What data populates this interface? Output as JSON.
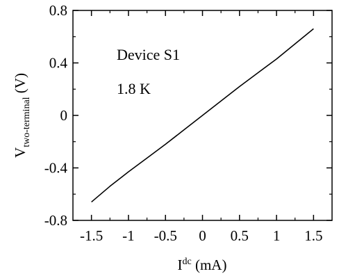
{
  "chart_data": {
    "type": "line",
    "x": [
      -1.5,
      -1.25,
      -1.0,
      -0.75,
      -0.5,
      -0.25,
      0.0,
      0.25,
      0.5,
      0.75,
      1.0,
      1.25,
      1.5
    ],
    "series": [
      {
        "values": [
          -0.66,
          -0.54,
          -0.43,
          -0.325,
          -0.22,
          -0.11,
          0.0,
          0.11,
          0.22,
          0.325,
          0.43,
          0.545,
          0.66
        ],
        "color": "#000000"
      }
    ],
    "xlim": [
      -1.75,
      1.75
    ],
    "ylim": [
      -0.8,
      0.8
    ],
    "xticks": [
      "-1.5",
      "-1",
      "-0.5",
      "0",
      "0.5",
      "1",
      "1.5"
    ],
    "yticks": [
      "-0.8",
      "-0.4",
      "0",
      "0.4",
      "0.8"
    ],
    "xlabel": {
      "main": "I",
      "sup": "dc",
      "unit": " (mA)"
    },
    "ylabel": {
      "main": "V",
      "sub": "two-terminal",
      "unit": " (V)"
    },
    "annotations": [
      "Device S1",
      "1.8 K"
    ],
    "grid": false,
    "legend": "none"
  }
}
